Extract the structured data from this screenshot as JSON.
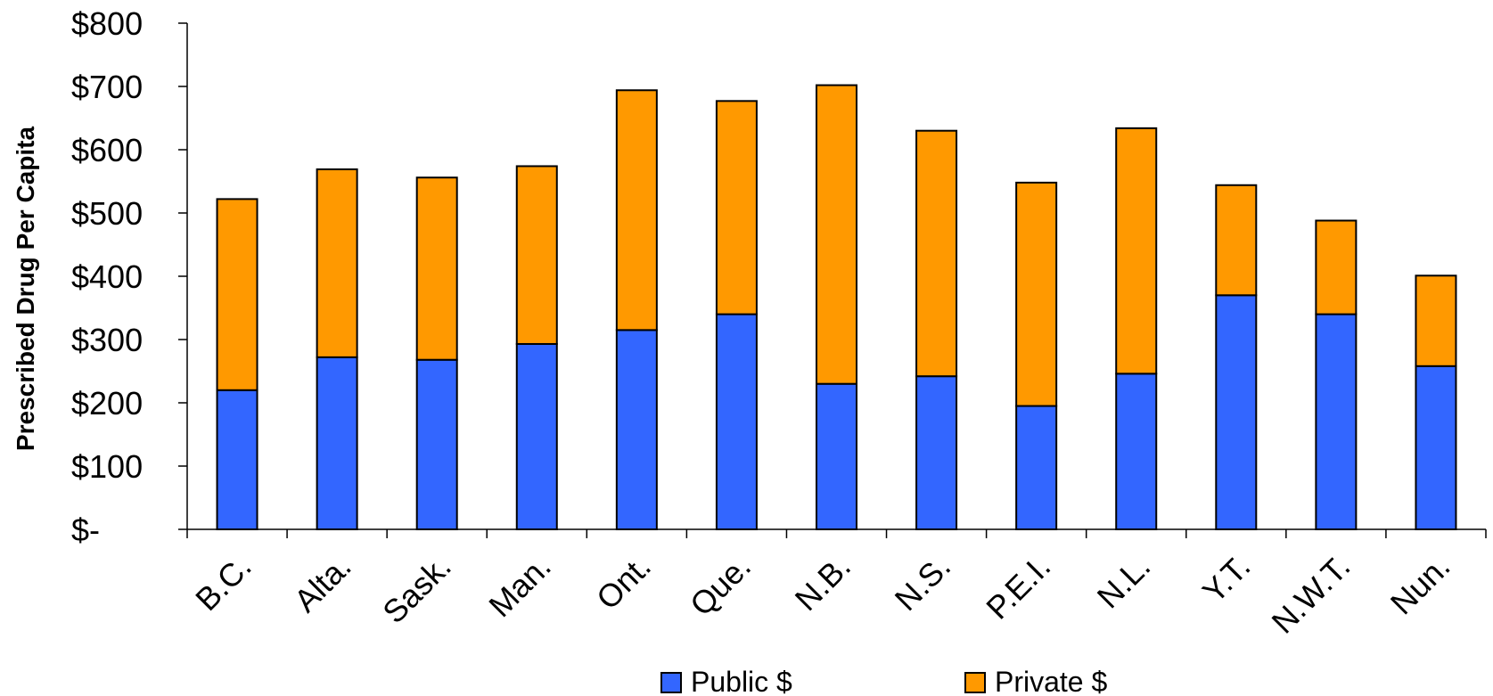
{
  "chart_data": {
    "type": "bar",
    "stacked": true,
    "ylabel": "Prescribed Drug Per Capita",
    "xlabel": "",
    "ylim": [
      0,
      800
    ],
    "yticks": [
      0,
      100,
      200,
      300,
      400,
      500,
      600,
      700,
      800
    ],
    "ytick_labels": [
      "$-",
      "$100",
      "$200",
      "$300",
      "$400",
      "$500",
      "$600",
      "$700",
      "$800"
    ],
    "grid": false,
    "legend_position": "bottom",
    "categories": [
      "B.C.",
      "Alta.",
      "Sask.",
      "Man.",
      "Ont.",
      "Que.",
      "N.B.",
      "N.S.",
      "P.E.I.",
      "N.L.",
      "Y.T.",
      "N.W.T.",
      "Nun."
    ],
    "series": [
      {
        "name": "Public $",
        "color": "#3366FF",
        "values": [
          220,
          272,
          268,
          293,
          315,
          340,
          230,
          242,
          195,
          246,
          370,
          340,
          258
        ]
      },
      {
        "name": "Private $",
        "color": "#FF9900",
        "values": [
          302,
          297,
          288,
          281,
          379,
          337,
          472,
          388,
          353,
          388,
          174,
          148,
          143
        ]
      }
    ]
  }
}
